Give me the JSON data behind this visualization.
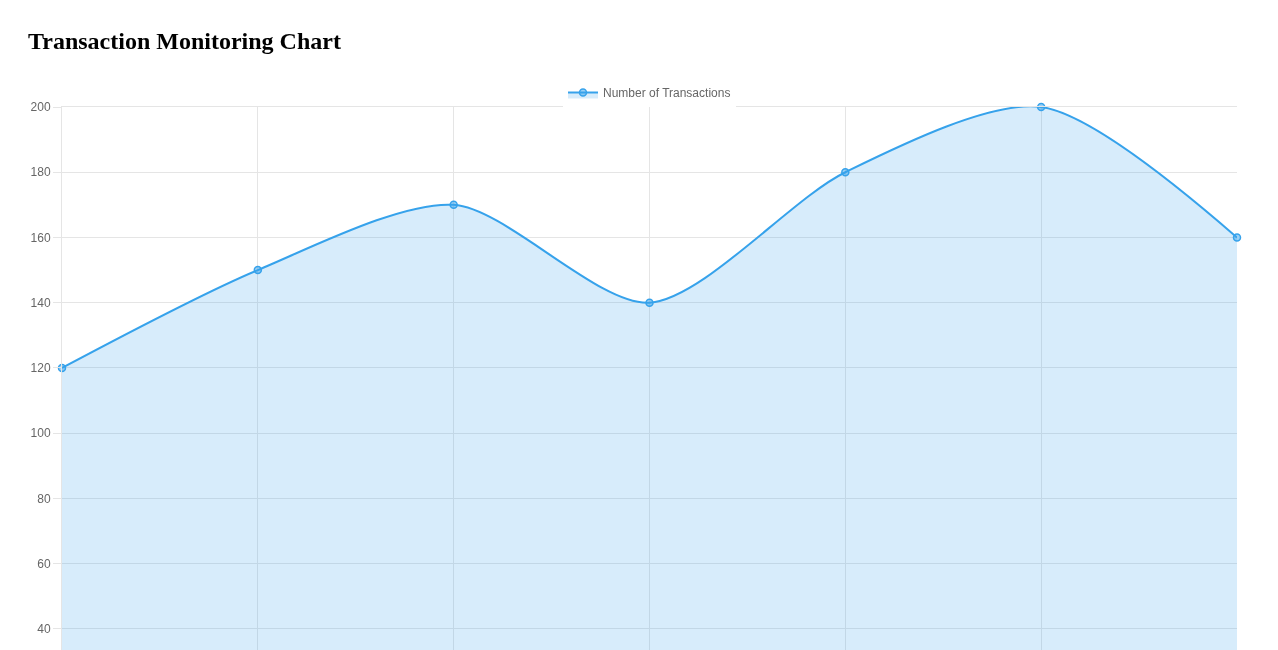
{
  "chart_data": {
    "type": "area",
    "title": "Transaction Monitoring Chart",
    "categories": [
      null,
      null,
      null,
      null,
      null,
      null,
      null
    ],
    "series": [
      {
        "name": "Number of Transactions",
        "color": "#36a2eb",
        "values": [
          120,
          150,
          170,
          140,
          180,
          200,
          160
        ]
      }
    ],
    "ylim": [
      33.5,
      200
    ],
    "yticks": [
      40,
      60,
      80,
      100,
      120,
      140,
      160,
      180,
      200
    ],
    "grid": true,
    "legend": "top",
    "marker": "circle",
    "line_style": "solid",
    "tick_labels": "y"
  }
}
